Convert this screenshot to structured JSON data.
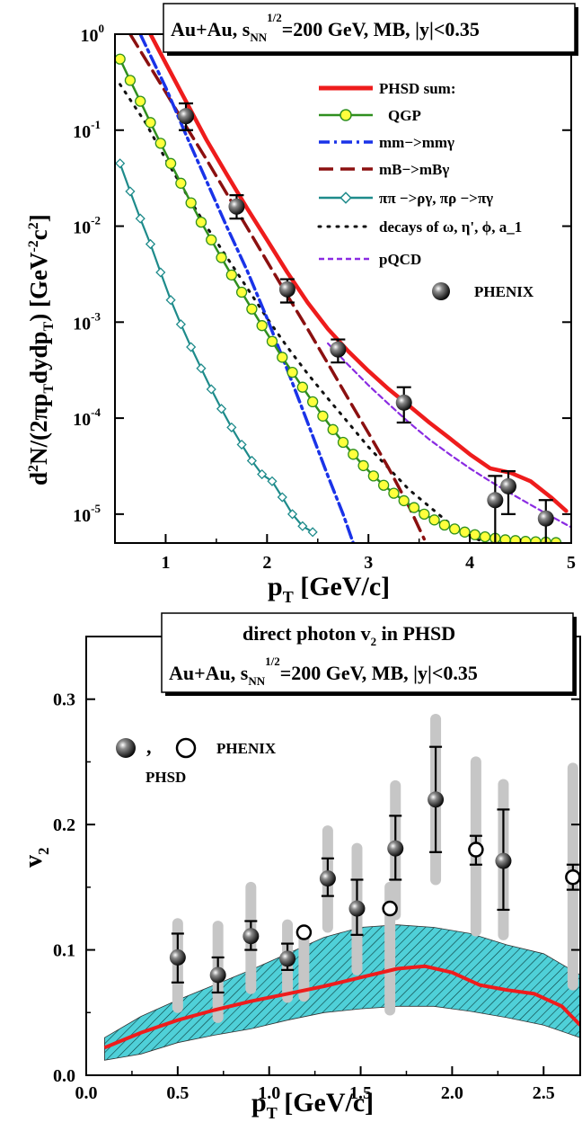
{
  "colors": {
    "phsd_sum": "#ee1c1c",
    "qgp_line": "#2f8f1f",
    "qgp_marker": "#ffff3c",
    "mm": "#1a33e8",
    "mb": "#8b1010",
    "pipi": "#1e8b8b",
    "decays": "#111111",
    "pqcd": "#8a2be2",
    "band_fill": "#4fd0d8",
    "syst_bar": "#c6c6c6"
  },
  "chart_data": [
    {
      "type": "line",
      "title": "Au+Au, s_NN^1/2=200 GeV, MB, |y|<0.35",
      "title_parts": {
        "main": "Au+Au, s",
        "sub": "NN",
        "sup": "1/2",
        "rest": "=200 GeV, MB, |y|<0.35"
      },
      "xlabel": "p_T [GeV/c]",
      "xlabel_parts": {
        "main": "p",
        "sub": "T",
        "rest": " [GeV/c]"
      },
      "ylabel": "d^2N/(2πp_T dydp_T) [GeV^-2 c^2]",
      "ylabel_parts": {
        "a": "d",
        "b": "2",
        "c": "N/(2πp",
        "d": "T",
        "e": "dydp",
        "f": "T",
        "g": ")  [GeV",
        "h": "-2",
        "i": "c",
        "j": "2",
        "k": "]"
      },
      "xlim": [
        0.5,
        5
      ],
      "ylim": [
        5e-06,
        1
      ],
      "yscale": "log",
      "xticks": [
        1,
        2,
        3,
        4,
        5
      ],
      "yticks": [
        {
          "base": "10",
          "exp": "-5",
          "v": 1e-05
        },
        {
          "base": "10",
          "exp": "-4",
          "v": 0.0001
        },
        {
          "base": "10",
          "exp": "-3",
          "v": 0.001
        },
        {
          "base": "10",
          "exp": "-2",
          "v": 0.01
        },
        {
          "base": "10",
          "exp": "-1",
          "v": 0.1
        },
        {
          "base": "10",
          "exp": "0",
          "v": 1
        }
      ],
      "legend_position": "right",
      "series": [
        {
          "name": "PHSD sum:",
          "style": "solid-thick",
          "x": [
            0.85,
            1.0,
            1.2,
            1.4,
            1.6,
            1.8,
            2.0,
            2.2,
            2.4,
            2.6,
            2.8,
            3.0,
            3.2,
            3.4,
            3.6,
            3.8,
            4.0,
            4.2,
            4.4,
            4.6,
            4.8,
            4.95
          ],
          "y": [
            1.0,
            0.5,
            0.2,
            0.08,
            0.035,
            0.0155,
            0.0072,
            0.0033,
            0.0016,
            0.00085,
            0.0005,
            0.00031,
            0.0002,
            0.000135,
            9e-05,
            6.2e-05,
            4.2e-05,
            3e-05,
            2.7e-05,
            2.2e-05,
            1.5e-05,
            1.08e-05
          ]
        },
        {
          "name": "QGP",
          "style": "solid-marker",
          "x": [
            0.55,
            0.65,
            0.75,
            0.85,
            0.95,
            1.05,
            1.15,
            1.25,
            1.35,
            1.45,
            1.55,
            1.65,
            1.75,
            1.85,
            1.95,
            2.05,
            2.15,
            2.25,
            2.35,
            2.45,
            2.55,
            2.65,
            2.75,
            2.85,
            2.95,
            3.05,
            3.15,
            3.25,
            3.35,
            3.45,
            3.55,
            3.65,
            3.75,
            3.85,
            3.95,
            4.05,
            4.15,
            4.25,
            4.35,
            4.45,
            4.55,
            4.65,
            4.75,
            4.85
          ],
          "y": [
            0.55,
            0.33,
            0.2,
            0.12,
            0.073,
            0.045,
            0.028,
            0.0175,
            0.011,
            0.0072,
            0.0047,
            0.0031,
            0.00205,
            0.00137,
            0.00092,
            0.00063,
            0.00043,
            0.0003,
            0.00021,
            0.000148,
            0.000105,
            7.6e-05,
            5.6e-05,
            4.2e-05,
            3.2e-05,
            2.5e-05,
            2e-05,
            1.65e-05,
            1.38e-05,
            1.17e-05,
            1e-05,
            8.7e-06,
            7.7e-06,
            7e-06,
            6.5e-06,
            6.1e-06,
            5.8e-06,
            5.6e-06,
            5.4e-06,
            5.3e-06,
            5.2e-06,
            5.15e-06,
            5.1e-06,
            5.05e-06
          ]
        },
        {
          "name": "mm−>mmγ",
          "style": "dash-dot",
          "x": [
            0.75,
            0.85,
            1.0,
            1.2,
            1.4,
            1.6,
            1.8,
            2.0,
            2.2,
            2.4,
            2.6,
            2.75,
            2.85
          ],
          "y": [
            1.0,
            0.6,
            0.28,
            0.09,
            0.03,
            0.01,
            0.0035,
            0.0011,
            0.00032,
            9e-05,
            2.5e-05,
            1e-05,
            5e-06
          ]
        },
        {
          "name": "mB−>mBγ",
          "style": "dash-long",
          "x": [
            0.65,
            0.8,
            1.0,
            1.2,
            1.4,
            1.6,
            1.8,
            2.0,
            2.2,
            2.4,
            2.6,
            2.8,
            3.0,
            3.2,
            3.4,
            3.55
          ],
          "y": [
            1.0,
            0.55,
            0.25,
            0.11,
            0.05,
            0.022,
            0.0098,
            0.0043,
            0.0019,
            0.00085,
            0.00037,
            0.00016,
            7e-05,
            3e-05,
            1.2e-05,
            5.5e-06
          ]
        },
        {
          "name": "ππ −>ργ, πρ −>πγ",
          "style": "solid-diamond",
          "x": [
            0.55,
            0.65,
            0.75,
            0.85,
            0.95,
            1.05,
            1.15,
            1.25,
            1.35,
            1.45,
            1.55,
            1.65,
            1.75,
            1.85,
            1.95,
            2.05,
            2.15,
            2.25,
            2.35,
            2.45
          ],
          "y": [
            0.045,
            0.023,
            0.012,
            0.0065,
            0.0033,
            0.0017,
            0.00095,
            0.00055,
            0.00033,
            0.0002,
            0.000125,
            8e-05,
            5.3e-05,
            3.6e-05,
            2.6e-05,
            2.2e-05,
            1.5e-05,
            1e-05,
            7.5e-06,
            6.5e-06
          ]
        },
        {
          "name": "decays of ω, η', ϕ, a_1",
          "style": "dotted",
          "x": [
            0.55,
            0.8,
            1.0,
            1.2,
            1.4,
            1.6,
            1.8,
            2.0,
            2.2,
            2.4,
            2.6,
            2.8,
            3.0,
            3.2,
            3.4,
            3.6,
            3.8,
            4.0,
            4.15
          ],
          "y": [
            0.3,
            0.12,
            0.05,
            0.022,
            0.01,
            0.0048,
            0.0023,
            0.0011,
            0.00055,
            0.00029,
            0.00016,
            9e-05,
            5e-05,
            3e-05,
            1.8e-05,
            1.2e-05,
            8e-06,
            6e-06,
            5e-06
          ]
        },
        {
          "name": "pQCD",
          "style": "short-dash",
          "x": [
            2.6,
            2.8,
            3.0,
            3.2,
            3.4,
            3.6,
            3.8,
            4.0,
            4.2,
            4.4,
            4.6,
            4.8,
            5.0
          ],
          "y": [
            0.0006,
            0.00036,
            0.00022,
            0.00014,
            9e-05,
            6e-05,
            4.2e-05,
            3e-05,
            2.2e-05,
            1.65e-05,
            1.25e-05,
            9.5e-06,
            7.3e-06
          ]
        }
      ],
      "points": {
        "name": "PHENIX",
        "x": [
          1.2,
          1.7,
          2.2,
          2.7,
          3.35,
          4.25,
          4.38,
          4.75
        ],
        "y": [
          0.14,
          0.016,
          0.0022,
          0.00052,
          0.000145,
          1.4e-05,
          1.95e-05,
          9e-06
        ],
        "ylo": [
          0.1,
          0.012,
          0.0016,
          0.00038,
          9e-05,
          5e-06,
          1e-05,
          5e-06
        ],
        "yhi": [
          0.19,
          0.021,
          0.0028,
          0.00066,
          0.00021,
          2.5e-05,
          2.8e-05,
          1.4e-05
        ]
      }
    },
    {
      "type": "line",
      "title": "direct photon v_2 in PHSD",
      "title_parts": {
        "main": "direct photon v",
        "sub": "2",
        "rest": " in PHSD"
      },
      "subtitle": "Au+Au, s_NN^1/2=200 GeV, MB, |y|<0.35",
      "subtitle_parts": {
        "main": "Au+Au, s",
        "sub": "NN",
        "sup": "1/2",
        "rest": "=200 GeV, MB, |y|<0.35"
      },
      "xlabel": "p_T [GeV/c]",
      "xlabel_parts": {
        "main": "p",
        "sub": "T",
        "rest": " [GeV/c]"
      },
      "ylabel": "v_2",
      "ylabel_parts": {
        "main": "v",
        "sub": "2"
      },
      "xlim": [
        0,
        2.7
      ],
      "ylim": [
        0,
        0.35
      ],
      "xticks": [
        "0.0",
        "0.5",
        "1.0",
        "1.5",
        "2.0",
        "2.5"
      ],
      "xtick_values": [
        0,
        0.5,
        1.0,
        1.5,
        2.0,
        2.5
      ],
      "yticks": [
        "0.0",
        "0.1",
        "0.2",
        "0.3"
      ],
      "ytick_values": [
        0,
        0.1,
        0.2,
        0.3
      ],
      "legend": {
        "symbols_sep": ",",
        "label_exp": "PHENIX",
        "label_model": "PHSD"
      },
      "phsd_line": {
        "x": [
          0.1,
          0.3,
          0.5,
          0.7,
          0.9,
          1.1,
          1.3,
          1.5,
          1.7,
          1.85,
          2.0,
          2.15,
          2.3,
          2.45,
          2.6,
          2.7
        ],
        "y": [
          0.022,
          0.034,
          0.044,
          0.052,
          0.059,
          0.065,
          0.071,
          0.078,
          0.085,
          0.087,
          0.082,
          0.072,
          0.068,
          0.065,
          0.055,
          0.04
        ]
      },
      "phsd_band": {
        "x": [
          0.1,
          0.3,
          0.5,
          0.7,
          0.9,
          1.1,
          1.3,
          1.5,
          1.7,
          1.9,
          2.1,
          2.3,
          2.5,
          2.7
        ],
        "upper": [
          0.03,
          0.047,
          0.06,
          0.072,
          0.084,
          0.097,
          0.11,
          0.118,
          0.12,
          0.118,
          0.113,
          0.104,
          0.097,
          0.08
        ],
        "lower": [
          0.012,
          0.017,
          0.026,
          0.032,
          0.037,
          0.044,
          0.05,
          0.053,
          0.055,
          0.055,
          0.051,
          0.046,
          0.04,
          0.03
        ]
      },
      "phsd_points": {
        "x": [
          0.5,
          0.72,
          0.9,
          1.1,
          1.32,
          1.48,
          1.69,
          1.91,
          2.28
        ],
        "y": [
          0.094,
          0.08,
          0.111,
          0.093,
          0.157,
          0.133,
          0.181,
          0.22,
          0.171
        ],
        "err_lo": [
          0.074,
          0.066,
          0.1,
          0.084,
          0.143,
          0.112,
          0.156,
          0.178,
          0.132
        ],
        "err_hi": [
          0.113,
          0.094,
          0.123,
          0.105,
          0.173,
          0.156,
          0.207,
          0.262,
          0.212
        ],
        "sys_lo": [
          0.054,
          0.046,
          0.069,
          0.062,
          0.118,
          0.084,
          0.128,
          0.156,
          0.112
        ],
        "sys_hi": [
          0.121,
          0.119,
          0.15,
          0.12,
          0.195,
          0.181,
          0.231,
          0.284,
          0.232
        ]
      },
      "phenix_points": {
        "x": [
          1.19,
          1.66,
          2.13,
          2.66
        ],
        "y": [
          0.114,
          0.133,
          0.18,
          0.158
        ],
        "err_lo": [
          0.114,
          0.133,
          0.168,
          0.148
        ],
        "err_hi": [
          0.114,
          0.133,
          0.191,
          0.168
        ],
        "sys_lo": [
          0.063,
          0.052,
          0.115,
          0.072
        ],
        "sys_hi": [
          0.114,
          0.15,
          0.25,
          0.245
        ]
      }
    }
  ]
}
